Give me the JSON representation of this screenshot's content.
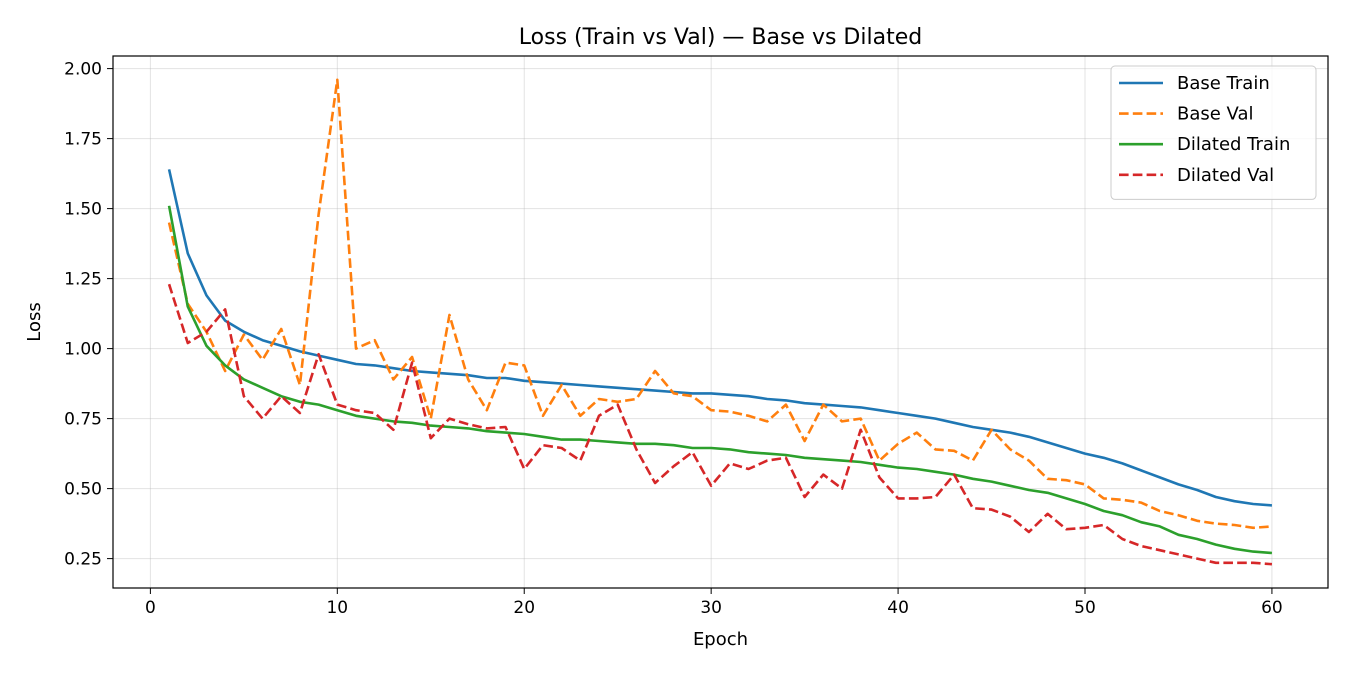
{
  "chart_data": {
    "type": "line",
    "title": "Loss (Train vs Val) — Base vs Dilated",
    "xlabel": "Epoch",
    "ylabel": "Loss",
    "xlim": [
      -2,
      63
    ],
    "ylim": [
      0.145,
      2.045
    ],
    "xticks": [
      0,
      10,
      20,
      30,
      40,
      50,
      60
    ],
    "yticks": [
      0.25,
      0.5,
      0.75,
      1.0,
      1.25,
      1.5,
      1.75,
      2.0
    ],
    "ytick_labels": [
      "0.25",
      "0.50",
      "0.75",
      "1.00",
      "1.25",
      "1.50",
      "1.75",
      "2.00"
    ],
    "grid": true,
    "legend_position": "top-right",
    "x": [
      1,
      2,
      3,
      4,
      5,
      6,
      7,
      8,
      9,
      10,
      11,
      12,
      13,
      14,
      15,
      16,
      17,
      18,
      19,
      20,
      21,
      22,
      23,
      24,
      25,
      26,
      27,
      28,
      29,
      30,
      31,
      32,
      33,
      34,
      35,
      36,
      37,
      38,
      39,
      40,
      41,
      42,
      43,
      44,
      45,
      46,
      47,
      48,
      49,
      50,
      51,
      52,
      53,
      54,
      55,
      56,
      57,
      58,
      59,
      60
    ],
    "series": [
      {
        "name": "Base Train",
        "color": "#1f77b4",
        "dashed": false,
        "values": [
          1.64,
          1.34,
          1.19,
          1.1,
          1.06,
          1.03,
          1.01,
          0.99,
          0.975,
          0.96,
          0.945,
          0.94,
          0.93,
          0.92,
          0.915,
          0.91,
          0.905,
          0.895,
          0.895,
          0.885,
          0.88,
          0.875,
          0.87,
          0.865,
          0.86,
          0.855,
          0.85,
          0.845,
          0.84,
          0.84,
          0.835,
          0.83,
          0.82,
          0.815,
          0.805,
          0.8,
          0.795,
          0.79,
          0.78,
          0.77,
          0.76,
          0.75,
          0.735,
          0.72,
          0.71,
          0.7,
          0.685,
          0.665,
          0.645,
          0.625,
          0.61,
          0.59,
          0.565,
          0.54,
          0.515,
          0.495,
          0.47,
          0.455,
          0.445,
          0.44
        ]
      },
      {
        "name": "Base Val",
        "color": "#ff7f0e",
        "dashed": true,
        "values": [
          1.45,
          1.16,
          1.06,
          0.92,
          1.05,
          0.96,
          1.07,
          0.87,
          1.48,
          1.96,
          1.0,
          1.03,
          0.89,
          0.97,
          0.75,
          1.12,
          0.89,
          0.78,
          0.95,
          0.94,
          0.76,
          0.87,
          0.76,
          0.82,
          0.81,
          0.82,
          0.92,
          0.84,
          0.83,
          0.78,
          0.775,
          0.76,
          0.74,
          0.8,
          0.67,
          0.8,
          0.74,
          0.75,
          0.6,
          0.66,
          0.7,
          0.64,
          0.635,
          0.6,
          0.71,
          0.64,
          0.6,
          0.535,
          0.53,
          0.515,
          0.465,
          0.46,
          0.45,
          0.42,
          0.405,
          0.385,
          0.375,
          0.37,
          0.36,
          0.365
        ]
      },
      {
        "name": "Dilated Train",
        "color": "#2ca02c",
        "dashed": false,
        "values": [
          1.51,
          1.15,
          1.01,
          0.94,
          0.89,
          0.86,
          0.83,
          0.81,
          0.8,
          0.78,
          0.76,
          0.75,
          0.74,
          0.735,
          0.725,
          0.72,
          0.715,
          0.705,
          0.7,
          0.695,
          0.685,
          0.675,
          0.675,
          0.67,
          0.665,
          0.66,
          0.66,
          0.655,
          0.645,
          0.645,
          0.64,
          0.63,
          0.625,
          0.62,
          0.61,
          0.605,
          0.6,
          0.595,
          0.585,
          0.575,
          0.57,
          0.56,
          0.55,
          0.535,
          0.525,
          0.51,
          0.495,
          0.485,
          0.465,
          0.445,
          0.42,
          0.405,
          0.38,
          0.365,
          0.335,
          0.32,
          0.3,
          0.285,
          0.275,
          0.27
        ]
      },
      {
        "name": "Dilated Val",
        "color": "#d62728",
        "dashed": true,
        "values": [
          1.23,
          1.02,
          1.06,
          1.14,
          0.83,
          0.75,
          0.83,
          0.77,
          0.98,
          0.8,
          0.78,
          0.77,
          0.71,
          0.95,
          0.68,
          0.75,
          0.73,
          0.715,
          0.72,
          0.57,
          0.655,
          0.645,
          0.6,
          0.76,
          0.8,
          0.64,
          0.52,
          0.58,
          0.63,
          0.51,
          0.59,
          0.57,
          0.6,
          0.61,
          0.47,
          0.55,
          0.5,
          0.71,
          0.54,
          0.465,
          0.465,
          0.47,
          0.55,
          0.43,
          0.425,
          0.4,
          0.345,
          0.41,
          0.355,
          0.36,
          0.37,
          0.32,
          0.295,
          0.28,
          0.265,
          0.25,
          0.235,
          0.235,
          0.235,
          0.23
        ]
      }
    ]
  }
}
